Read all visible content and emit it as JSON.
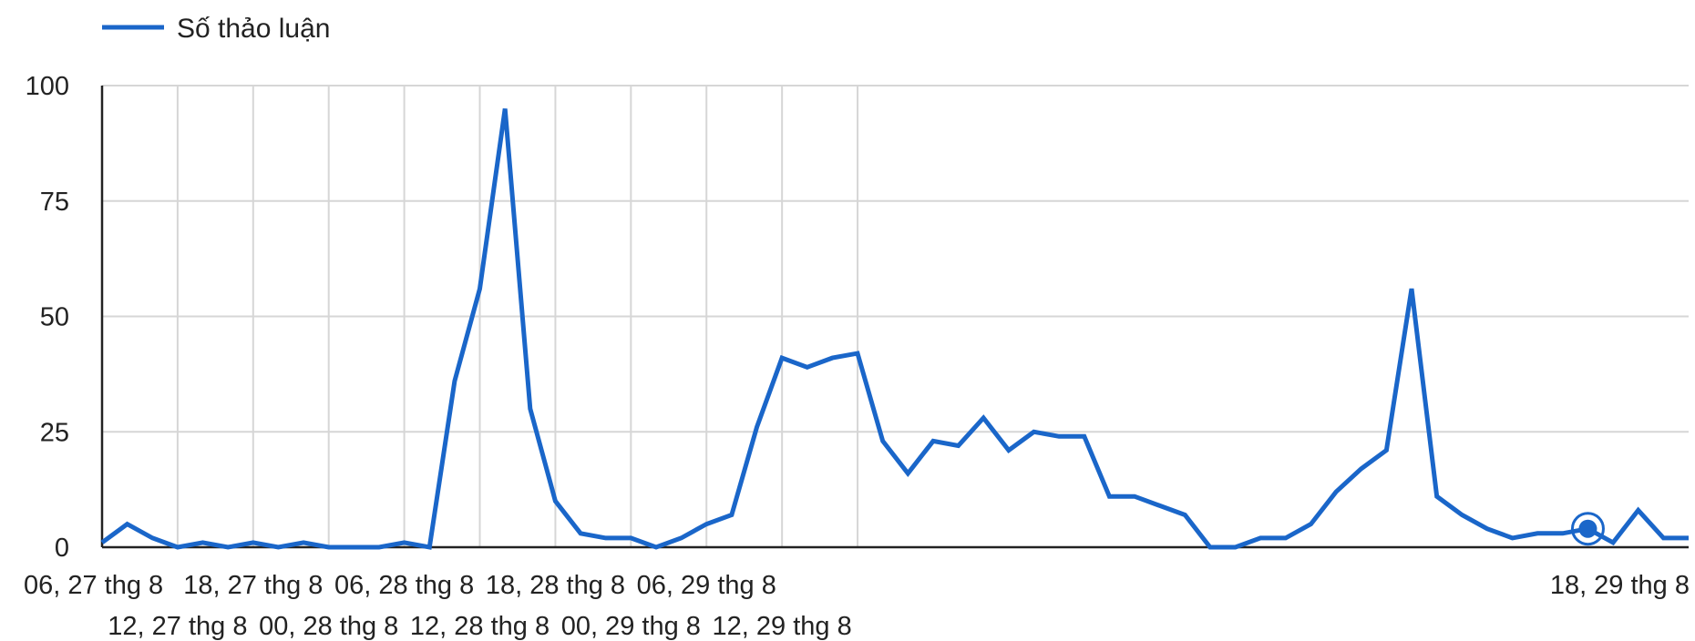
{
  "chart_data": {
    "type": "line",
    "title": "",
    "xlabel": "",
    "ylabel": "",
    "ylim": [
      0,
      100
    ],
    "yticks": [
      "0",
      "25",
      "50",
      "75",
      "100"
    ],
    "x_tick_labels": [
      "06, 27 thg 8",
      "12, 27 thg 8",
      "18, 27 thg 8",
      "00, 28 thg 8",
      "06, 28 thg 8",
      "12, 28 thg 8",
      "18, 28 thg 8",
      "00, 29 thg 8",
      "06, 29 thg 8",
      "12, 29 thg 8",
      "18, 29 thg 8"
    ],
    "grid": true,
    "legend_position": "top-left",
    "series": [
      {
        "name": "Số thảo luận",
        "color": "#1a66c9",
        "values": [
          1,
          5,
          2,
          0,
          1,
          0,
          1,
          0,
          1,
          0,
          0,
          0,
          1,
          0,
          36,
          56,
          95,
          30,
          10,
          3,
          2,
          2,
          0,
          2,
          5,
          7,
          26,
          41,
          39,
          41,
          42,
          23,
          16,
          23,
          22,
          28,
          21,
          25,
          24,
          24,
          11,
          11,
          9,
          7,
          0,
          0,
          2,
          2,
          5,
          12,
          17,
          21,
          56,
          11,
          7,
          4,
          2,
          3,
          3,
          4,
          1,
          8,
          2,
          2
        ]
      }
    ],
    "highlight_point_index": 59
  }
}
